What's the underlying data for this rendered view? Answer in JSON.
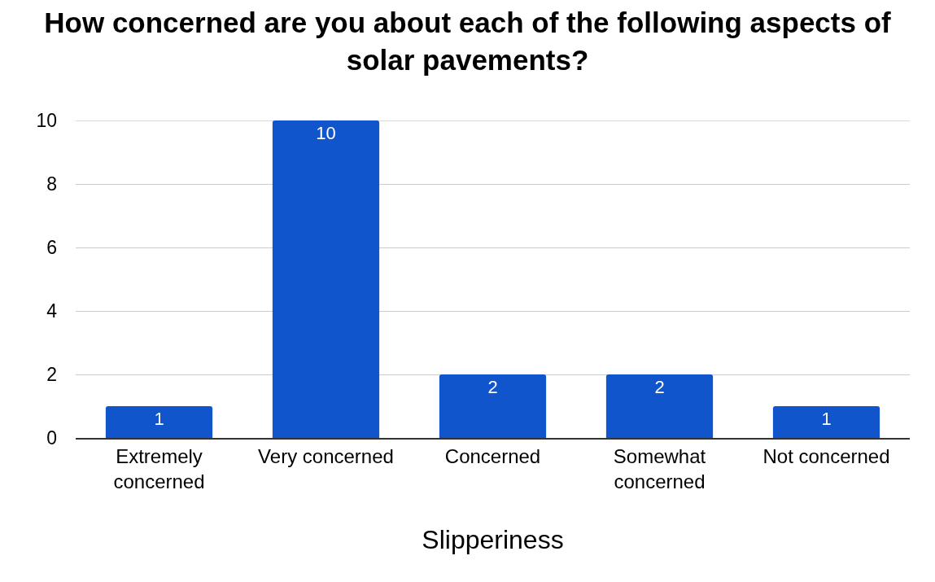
{
  "chart_data": {
    "type": "bar",
    "title": "How concerned are you about each of the following aspects of solar pavements?",
    "xlabel": "Slipperiness",
    "categories": [
      "Extremely concerned",
      "Very concerned",
      "Concerned",
      "Somewhat concerned",
      "Not concerned"
    ],
    "values": [
      1,
      10,
      2,
      2,
      1
    ],
    "color": "#1155cc",
    "ylim": [
      0,
      10
    ],
    "yticks": [
      0,
      2,
      4,
      6,
      8,
      10
    ],
    "grid": "y",
    "data_labels": true
  }
}
